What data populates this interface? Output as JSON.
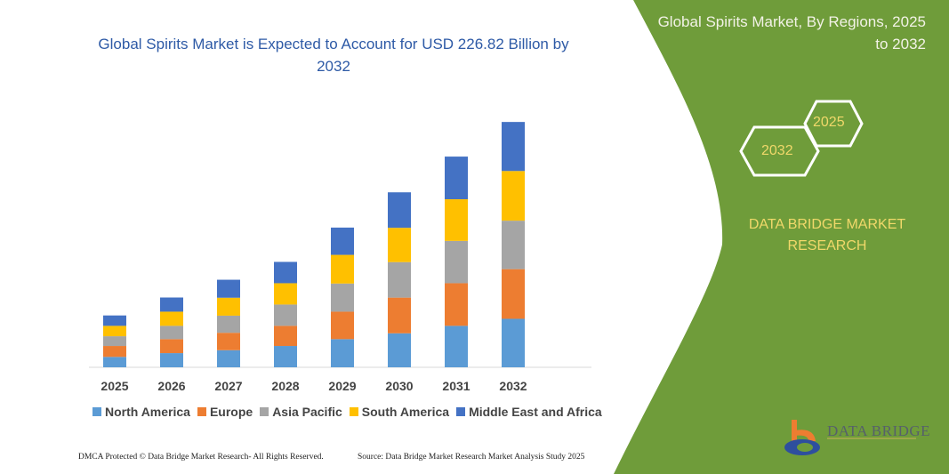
{
  "chart_data": {
    "type": "bar",
    "stacked": true,
    "title": "Global Spirits Market is Expected to Account for USD 226.82 Billion by 2032",
    "categories": [
      "2025",
      "2026",
      "2027",
      "2028",
      "2029",
      "2030",
      "2031",
      "2032"
    ],
    "series": [
      {
        "name": "North America",
        "color": "#5b9bd5",
        "values": [
          9.6,
          13.1,
          15.8,
          19.7,
          26.0,
          31.4,
          38.3,
          44.8
        ]
      },
      {
        "name": "Europe",
        "color": "#ed7d31",
        "values": [
          10.1,
          12.9,
          16.1,
          18.6,
          25.4,
          33.0,
          39.4,
          45.9
        ]
      },
      {
        "name": "Asia Pacific",
        "color": "#a5a5a5",
        "values": [
          9.0,
          12.3,
          15.8,
          19.7,
          26.0,
          32.8,
          39.1,
          44.8
        ]
      },
      {
        "name": "South America",
        "color": "#ffc000",
        "values": [
          9.6,
          13.1,
          16.6,
          19.7,
          26.5,
          31.7,
          38.5,
          45.9
        ]
      },
      {
        "name": "Middle East and Africa",
        "color": "#4472c4",
        "values": [
          9.6,
          13.1,
          16.6,
          19.7,
          25.2,
          32.8,
          39.4,
          45.3
        ]
      }
    ],
    "ylim": [
      0,
      226.82
    ],
    "y_axis_shown": false,
    "grid": false,
    "legend_position": "bottom"
  },
  "side_panel": {
    "title": "Global Spirits Market, By Regions, 2025 to 2032",
    "hex_start": "2025",
    "hex_end": "2032",
    "brand": "DATA BRIDGE MARKET RESEARCH",
    "color": "#6f9c3a"
  },
  "footer": {
    "copyright": "DMCA Protected © Data Bridge Market Research-  All Rights Reserved.",
    "source": "Source: Data Bridge Market Research  Market Analysis Study 2025"
  },
  "logo": {
    "text": "DATA BRIDGE"
  }
}
